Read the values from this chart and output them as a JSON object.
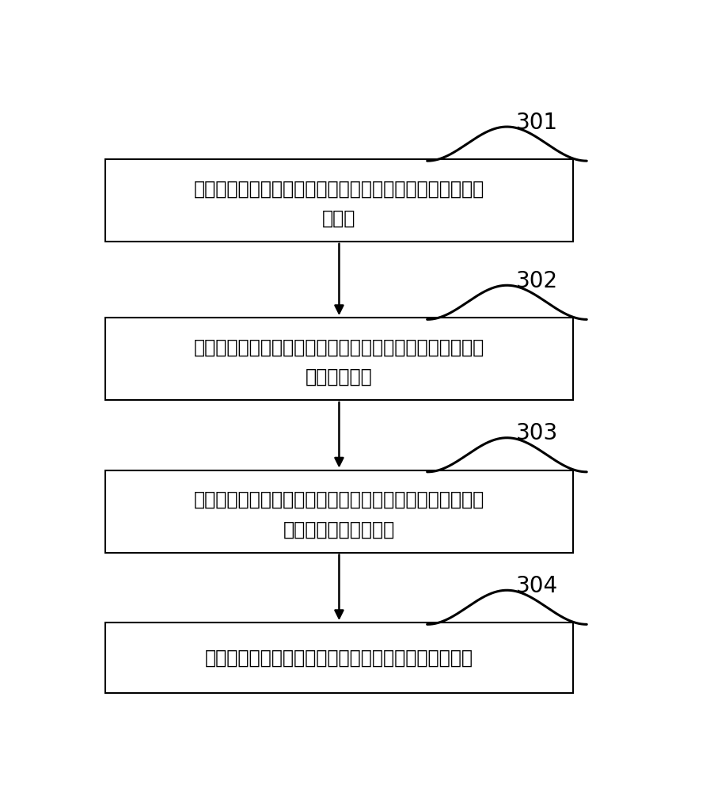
{
  "bg_color": "#ffffff",
  "box_color": "#ffffff",
  "box_edge_color": "#000000",
  "text_color": "#000000",
  "arrow_color": "#000000",
  "label_color": "#000000",
  "boxes": [
    {
      "label": "301",
      "text_line1": "感光模组中的感光部件按照设定频率获取环境亮度值，并进",
      "text_line2": "行存储"
    },
    {
      "label": "302",
      "text_line1": "响应于触发的相机开启操作，获取最近一次的环境亮度值作",
      "text_line2": "为当前亮度值"
    },
    {
      "label": "303",
      "text_line1": "根据环境亮度值与曝光参数的对应关系，确定所述当前亮度",
      "text_line2": "值对应的当前曝光参数"
    },
    {
      "label": "304",
      "text_line1": "根据所述当前曝光参数对所述相机模组的参数进行设置",
      "text_line2": ""
    }
  ],
  "font_size_text": 17,
  "font_size_label": 20,
  "figsize": [
    8.97,
    10.0
  ]
}
